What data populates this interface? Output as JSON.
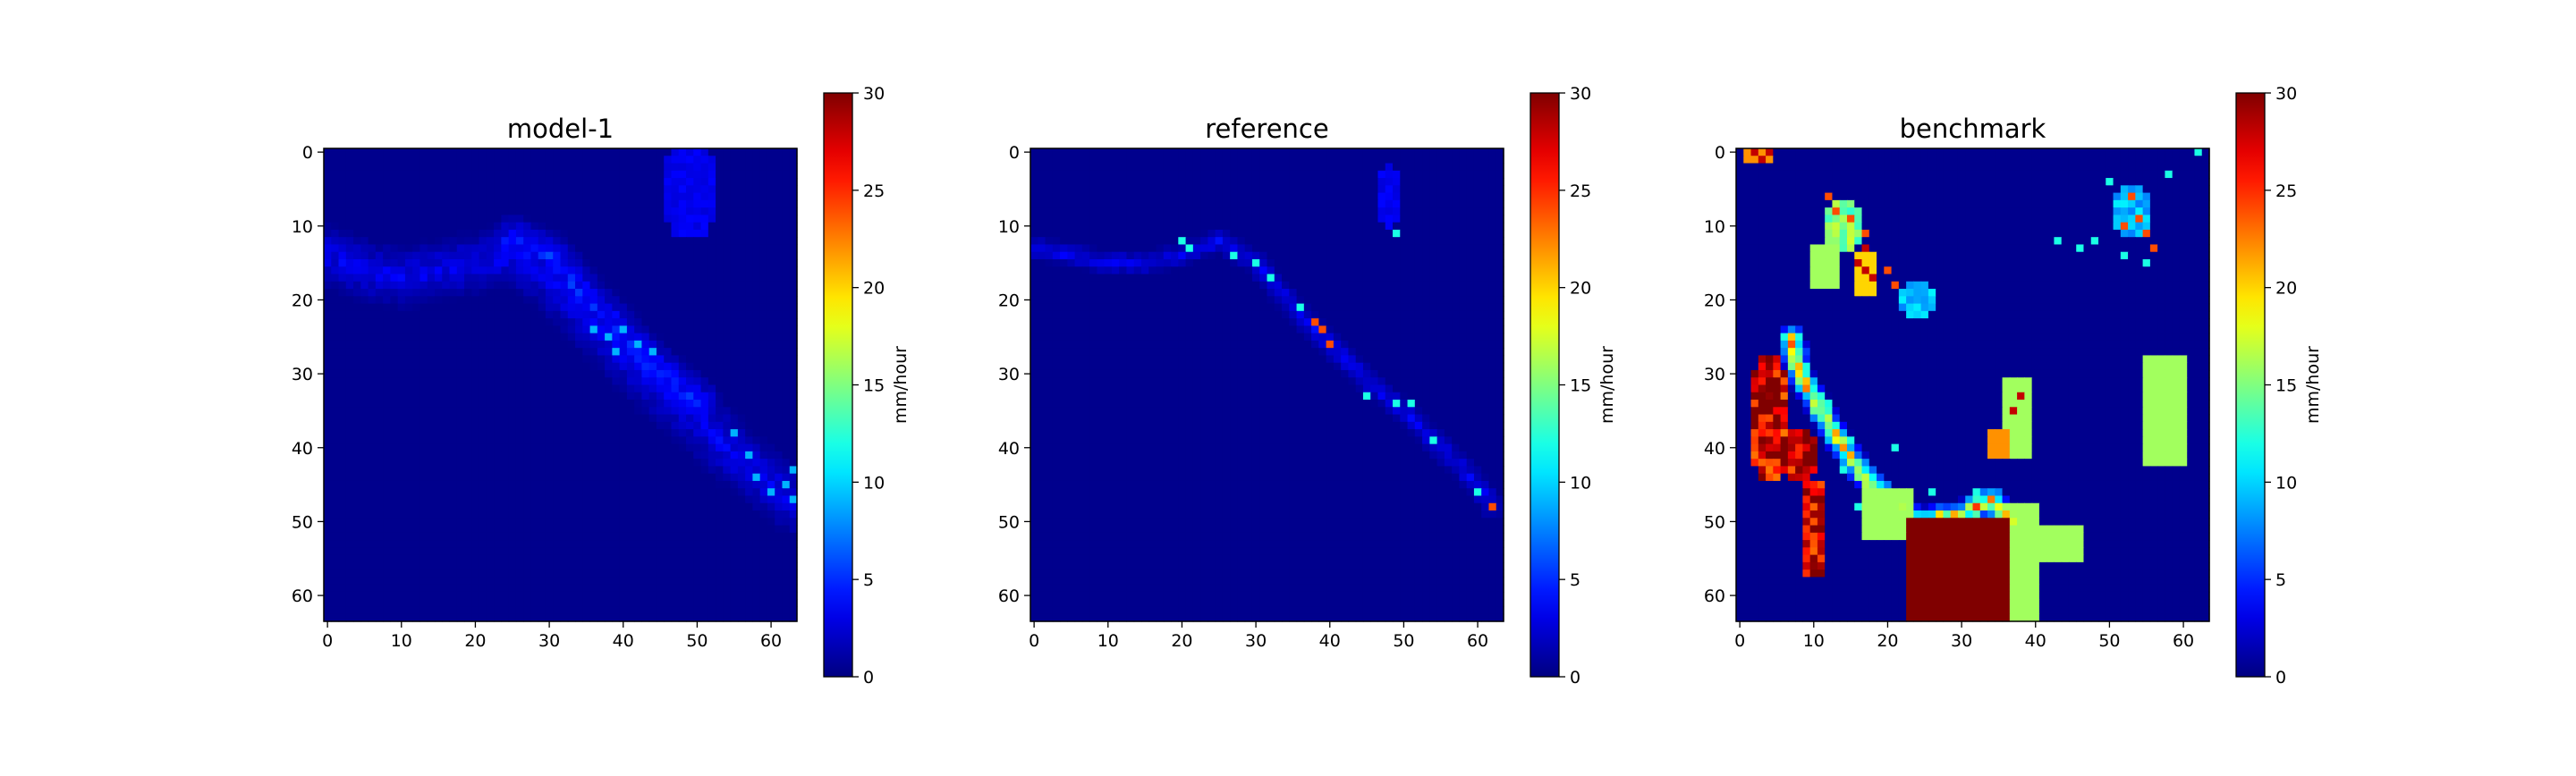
{
  "chart_data": [
    {
      "type": "heatmap",
      "title": "model-1",
      "x_ticks": [
        "0",
        "10",
        "20",
        "30",
        "40",
        "50",
        "60"
      ],
      "y_ticks": [
        "0",
        "10",
        "20",
        "30",
        "40",
        "50",
        "60"
      ],
      "grid_size": [
        64,
        64
      ],
      "colormap": "jet",
      "vmin": 0,
      "vmax": 30,
      "colorbar_label": "mm/hour",
      "colorbar_ticks": [
        "0",
        "5",
        "10",
        "15",
        "20",
        "25",
        "30"
      ],
      "features": [
        {
          "kind": "band",
          "path": [
            [
              0,
              14
            ],
            [
              5,
              16
            ],
            [
              10,
              17
            ],
            [
              15,
              16
            ],
            [
              20,
              15
            ],
            [
              25,
              14
            ],
            [
              30,
              17
            ],
            [
              35,
              22
            ],
            [
              40,
              27
            ],
            [
              45,
              32
            ],
            [
              50,
              36
            ],
            [
              55,
              41
            ],
            [
              60,
              45
            ],
            [
              64,
              48
            ]
          ],
          "width": 5,
          "value": 3.5
        },
        {
          "kind": "band",
          "path": [
            [
              25,
              12
            ],
            [
              30,
              14
            ],
            [
              35,
              20
            ],
            [
              40,
              25
            ],
            [
              45,
              30
            ],
            [
              50,
              34
            ]
          ],
          "width": 4,
          "value": 5
        },
        {
          "kind": "blob",
          "x": 49,
          "y": 5,
          "rx": 4,
          "ry": 7,
          "value": 3.5
        },
        {
          "kind": "points",
          "value": 9,
          "cells": [
            [
              36,
              24
            ],
            [
              38,
              25
            ],
            [
              39,
              27
            ],
            [
              40,
              24
            ],
            [
              42,
              26
            ],
            [
              44,
              27
            ],
            [
              55,
              38
            ],
            [
              57,
              41
            ],
            [
              58,
              44
            ],
            [
              60,
              46
            ],
            [
              62,
              45
            ],
            [
              63,
              43
            ],
            [
              63,
              47
            ]
          ]
        }
      ]
    },
    {
      "type": "heatmap",
      "title": "reference",
      "x_ticks": [
        "0",
        "10",
        "20",
        "30",
        "40",
        "50",
        "60"
      ],
      "y_ticks": [
        "0",
        "10",
        "20",
        "30",
        "40",
        "50",
        "60"
      ],
      "grid_size": [
        64,
        64
      ],
      "colormap": "jet",
      "vmin": 0,
      "vmax": 30,
      "colorbar_label": "mm/hour",
      "colorbar_ticks": [
        "0",
        "5",
        "10",
        "15",
        "20",
        "25",
        "30"
      ],
      "features": [
        {
          "kind": "band",
          "path": [
            [
              0,
              13
            ],
            [
              5,
              14
            ],
            [
              10,
              15
            ],
            [
              15,
              15
            ],
            [
              20,
              14
            ],
            [
              25,
              12
            ],
            [
              30,
              15
            ],
            [
              35,
              21
            ],
            [
              40,
              26
            ],
            [
              45,
              31
            ],
            [
              50,
              35
            ],
            [
              55,
              40
            ],
            [
              60,
              45
            ],
            [
              62,
              48
            ]
          ],
          "width": 2,
          "value": 3.5
        },
        {
          "kind": "blob",
          "x": 48,
          "y": 6,
          "rx": 1.5,
          "ry": 5,
          "value": 3.5
        },
        {
          "kind": "points",
          "value": 12,
          "cells": [
            [
              20,
              12
            ],
            [
              21,
              13
            ],
            [
              27,
              14
            ],
            [
              30,
              15
            ],
            [
              32,
              17
            ],
            [
              36,
              21
            ],
            [
              45,
              33
            ],
            [
              49,
              34
            ],
            [
              51,
              34
            ],
            [
              54,
              39
            ],
            [
              60,
              46
            ],
            [
              49,
              11
            ]
          ]
        },
        {
          "kind": "points",
          "value": 24,
          "cells": [
            [
              38,
              23
            ],
            [
              39,
              24
            ],
            [
              40,
              26
            ],
            [
              62,
              48
            ]
          ]
        }
      ]
    },
    {
      "type": "heatmap",
      "title": "benchmark",
      "x_ticks": [
        "0",
        "10",
        "20",
        "30",
        "40",
        "50",
        "60"
      ],
      "y_ticks": [
        "0",
        "10",
        "20",
        "30",
        "40",
        "50",
        "60"
      ],
      "grid_size": [
        64,
        64
      ],
      "colormap": "jet",
      "vmin": 0,
      "vmax": 30,
      "colorbar_label": "mm/hour",
      "colorbar_ticks": [
        "0",
        "5",
        "10",
        "15",
        "20",
        "25",
        "30"
      ],
      "features": [
        {
          "kind": "rect",
          "x0": 55,
          "y0": 28,
          "x1": 61,
          "y1": 43,
          "value": 16
        },
        {
          "kind": "rect",
          "x0": 35,
          "y0": 51,
          "x1": 47,
          "y1": 56,
          "value": 16
        },
        {
          "kind": "rect",
          "x0": 36,
          "y0": 48,
          "x1": 41,
          "y1": 64,
          "value": 16
        },
        {
          "kind": "rect",
          "x0": 10,
          "y0": 13,
          "x1": 14,
          "y1": 19,
          "value": 16
        },
        {
          "kind": "rect",
          "x0": 17,
          "y0": 46,
          "x1": 24,
          "y1": 53,
          "value": 16
        },
        {
          "kind": "rect",
          "x0": 36,
          "y0": 31,
          "x1": 40,
          "y1": 42,
          "value": 16
        },
        {
          "kind": "blob",
          "x": 4,
          "y": 36,
          "rx": 3,
          "ry": 9,
          "value": 30
        },
        {
          "kind": "blob",
          "x": 8,
          "y": 41,
          "rx": 2.5,
          "ry": 4,
          "value": 30
        },
        {
          "kind": "blob",
          "x": 10,
          "y": 51,
          "rx": 2,
          "ry": 7,
          "value": 30
        },
        {
          "kind": "rect",
          "x0": 23,
          "y0": 50,
          "x1": 37,
          "y1": 64,
          "value": 30
        },
        {
          "kind": "band",
          "path": [
            [
              7,
              25
            ],
            [
              8,
              30
            ],
            [
              11,
              35
            ],
            [
              14,
              40
            ],
            [
              17,
              44
            ],
            [
              20,
              47
            ],
            [
              24,
              50
            ],
            [
              30,
              49
            ],
            [
              34,
              47
            ],
            [
              37,
              50
            ]
          ],
          "width": 2,
          "value": 22
        },
        {
          "kind": "points",
          "value": 12,
          "cells": [
            [
              9,
              29
            ],
            [
              12,
              34
            ],
            [
              14,
              43
            ],
            [
              16,
              48
            ],
            [
              18,
              50
            ],
            [
              15,
              39
            ],
            [
              26,
              46
            ],
            [
              32,
              46
            ],
            [
              34,
              48
            ],
            [
              21,
              40
            ]
          ]
        },
        {
          "kind": "blob",
          "x": 14,
          "y": 10,
          "rx": 3,
          "ry": 4,
          "value": 16
        },
        {
          "kind": "points",
          "value": 24,
          "cells": [
            [
              12,
              6
            ],
            [
              13,
              8
            ],
            [
              15,
              9
            ],
            [
              17,
              11
            ],
            [
              20,
              16
            ],
            [
              21,
              18
            ]
          ]
        },
        {
          "kind": "blob",
          "x": 24,
          "y": 20,
          "rx": 3,
          "ry": 2.5,
          "value": 10
        },
        {
          "kind": "blob",
          "x": 53,
          "y": 8,
          "rx": 3,
          "ry": 4,
          "value": 10
        },
        {
          "kind": "points",
          "value": 24,
          "cells": [
            [
              54,
              9
            ],
            [
              55,
              11
            ],
            [
              53,
              6
            ],
            [
              52,
              10
            ],
            [
              56,
              13
            ]
          ]
        },
        {
          "kind": "points",
          "value": 12,
          "cells": [
            [
              43,
              12
            ],
            [
              46,
              13
            ],
            [
              48,
              12
            ],
            [
              52,
              14
            ],
            [
              55,
              15
            ],
            [
              58,
              3
            ],
            [
              62,
              0
            ],
            [
              50,
              4
            ]
          ]
        },
        {
          "kind": "rect",
          "x0": 16,
          "y0": 14,
          "x1": 19,
          "y1": 20,
          "value": 20
        },
        {
          "kind": "points",
          "value": 28,
          "cells": [
            [
              2,
              0
            ],
            [
              3,
              1
            ],
            [
              4,
              0
            ],
            [
              17,
              16
            ],
            [
              18,
              17
            ],
            [
              16,
              15
            ],
            [
              17,
              13
            ],
            [
              38,
              33
            ],
            [
              37,
              35
            ]
          ]
        },
        {
          "kind": "rect",
          "x0": 1,
          "y0": 0,
          "x1": 5,
          "y1": 2,
          "value": 22
        },
        {
          "kind": "rect",
          "x0": 34,
          "y0": 38,
          "x1": 37,
          "y1": 42,
          "value": 22
        }
      ]
    }
  ]
}
